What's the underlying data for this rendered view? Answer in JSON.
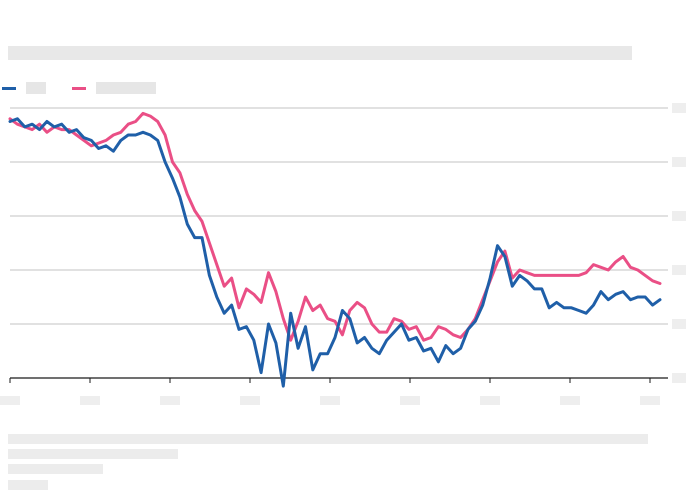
{
  "chart_data": {
    "type": "line",
    "title": "",
    "xlabel": "",
    "ylabel": "",
    "grid": true,
    "legend_placement": "top-left",
    "x_ticks": [
      "",
      "",
      "",
      "",
      "",
      "",
      "",
      "",
      ""
    ],
    "y_ticks": [
      "",
      "",
      "",
      "",
      "",
      ""
    ],
    "ylim": [
      0,
      100
    ],
    "series": [
      {
        "name": "",
        "color": "#1f5fa8",
        "values": [
          95,
          96,
          93,
          94,
          92,
          95,
          93,
          94,
          91,
          92,
          89,
          88,
          85,
          86,
          84,
          88,
          90,
          90,
          91,
          90,
          88,
          80,
          74,
          67,
          57,
          52,
          52,
          38,
          30,
          24,
          27,
          18,
          19,
          14,
          2,
          20,
          13,
          -3,
          24,
          11,
          19,
          3,
          9,
          9,
          15,
          25,
          22,
          13,
          15,
          11,
          9,
          14,
          17,
          20,
          14,
          15,
          10,
          11,
          6,
          12,
          9,
          11,
          18,
          21,
          27,
          37,
          49,
          45,
          34,
          38,
          36,
          33,
          33,
          26,
          28,
          26,
          26,
          25,
          24,
          27,
          32,
          29,
          31,
          32,
          29,
          30,
          30,
          27,
          29
        ]
      },
      {
        "name": "",
        "color": "#ea4f86",
        "values": [
          96,
          94,
          93,
          92,
          94,
          91,
          93,
          92,
          92,
          90,
          88,
          86,
          87,
          88,
          90,
          91,
          94,
          95,
          98,
          97,
          95,
          90,
          80,
          76,
          68,
          62,
          58,
          50,
          42,
          34,
          37,
          26,
          33,
          31,
          28,
          39,
          32,
          22,
          14,
          21,
          30,
          25,
          27,
          22,
          21,
          16,
          25,
          28,
          26,
          20,
          17,
          17,
          22,
          21,
          18,
          19,
          14,
          15,
          19,
          18,
          16,
          15,
          18,
          22,
          29,
          36,
          43,
          47,
          37,
          40,
          39,
          38,
          38,
          38,
          38,
          38,
          38,
          38,
          39,
          42,
          41,
          40,
          43,
          45,
          41,
          40,
          38,
          36,
          35
        ]
      }
    ]
  }
}
